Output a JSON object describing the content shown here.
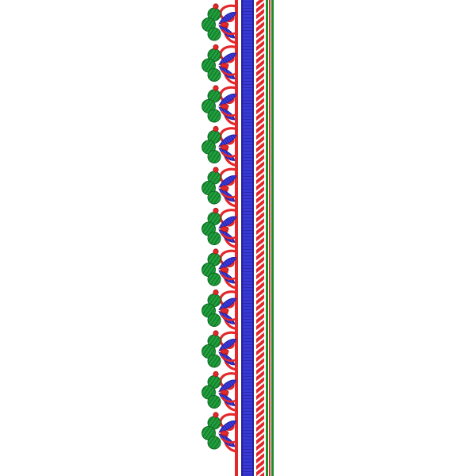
{
  "design": {
    "type": "embroidery-border",
    "orientation": "vertical",
    "motif_repeat_count": 11,
    "colors": {
      "background": "#ffffff",
      "leaf_green": "#1f9a3a",
      "leaf_green_dark": "#0f6a22",
      "petal_blue": "#3b3bd6",
      "petal_blue_dark": "#1e1e9a",
      "accent_red": "#e3282b",
      "accent_red_dark": "#a81515",
      "stripe_green": "#1a8f2e",
      "stripe_white": "#ffffff"
    },
    "stripes": [
      {
        "name": "blue-satin-band",
        "color": "#3535d0",
        "pattern": "satin"
      },
      {
        "name": "red-rope-band",
        "color": "#e3282b",
        "pattern": "rope"
      },
      {
        "name": "green-thin-line",
        "color": "#1a8f2e",
        "pattern": "solid"
      },
      {
        "name": "red-thin-line",
        "color": "#e3282b",
        "pattern": "solid"
      },
      {
        "name": "green-edge-line",
        "color": "#1a8f2e",
        "pattern": "solid"
      }
    ]
  }
}
